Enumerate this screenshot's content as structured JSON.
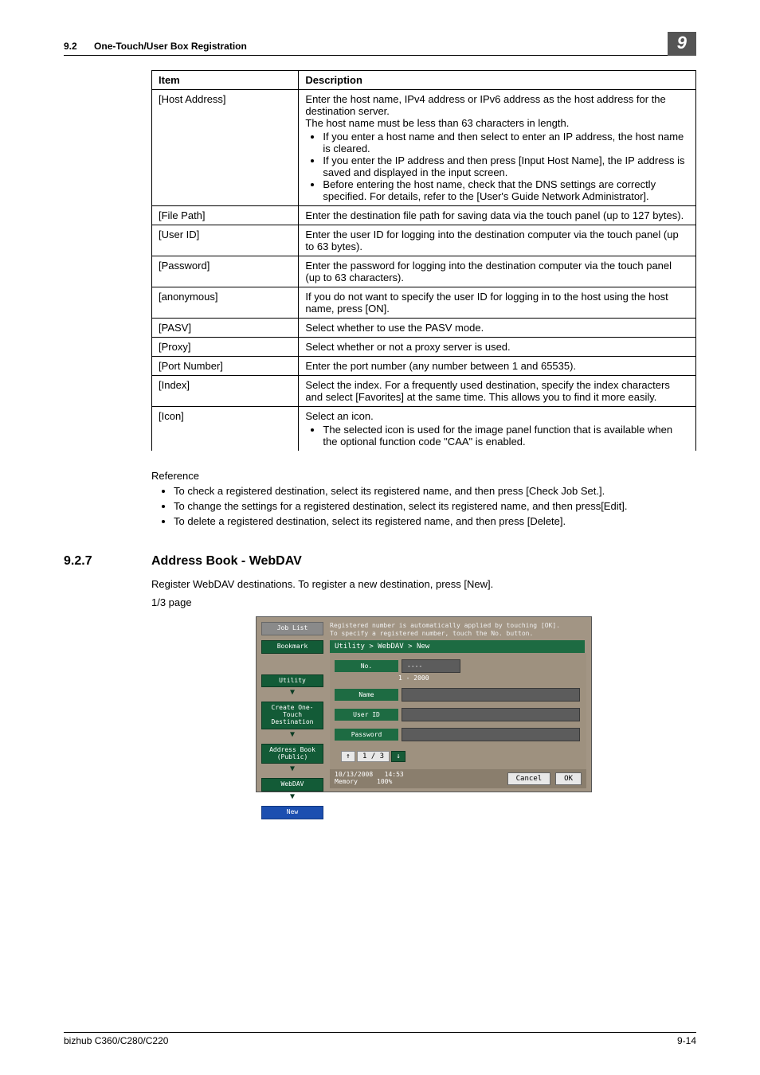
{
  "header": {
    "section_number": "9.2",
    "section_title": "One-Touch/User Box Registration",
    "chapter_badge": "9"
  },
  "table": {
    "columns": [
      "Item",
      "Description"
    ],
    "rows": [
      {
        "item": "[Host Address]",
        "desc_paras": [
          "Enter the host name, IPv4 address or IPv6 address as the host address for the destination server.",
          "The host name must be less than 63 characters in length."
        ],
        "bullets": [
          "If you enter a host name and then select to enter an IP address, the host name is cleared.",
          "If you enter the IP address and then press [Input Host Name], the IP address is saved and displayed in the input screen.",
          "Before entering the host name, check that the DNS settings are correctly specified. For details, refer to the [User's Guide Network Administrator]."
        ]
      },
      {
        "item": "[File Path]",
        "desc_paras": [
          "Enter the destination file path for saving data via the touch panel (up to 127 bytes)."
        ],
        "bullets": []
      },
      {
        "item": "[User ID]",
        "desc_paras": [
          "Enter the user ID for logging into the destination computer via the touch panel (up to 63 bytes)."
        ],
        "bullets": []
      },
      {
        "item": "[Password]",
        "desc_paras": [
          "Enter the password for logging into the destination computer via the touch panel (up to 63 characters)."
        ],
        "bullets": []
      },
      {
        "item": "[anonymous]",
        "desc_paras": [
          "If you do not want to specify the user ID for logging in to the host using the host name, press [ON]."
        ],
        "bullets": []
      },
      {
        "item": "[PASV]",
        "desc_paras": [
          "Select whether to use the PASV mode."
        ],
        "bullets": []
      },
      {
        "item": "[Proxy]",
        "desc_paras": [
          "Select whether or not a proxy server is used."
        ],
        "bullets": []
      },
      {
        "item": "[Port Number]",
        "desc_paras": [
          "Enter the port number (any number between 1 and 65535)."
        ],
        "bullets": []
      },
      {
        "item": "[Index]",
        "desc_paras": [
          "Select the index. For a frequently used destination, specify the index characters and select [Favorites] at the same time. This allows you to find it more easily."
        ],
        "bullets": []
      },
      {
        "item": "[Icon]",
        "desc_paras": [
          "Select an icon."
        ],
        "bullets": [
          "The selected icon is used for the image panel function that is available when the optional function code \"CAA\" is enabled."
        ]
      }
    ]
  },
  "reference": {
    "label": "Reference",
    "items": [
      "To check a registered destination, select its registered name, and then press [Check Job Set.].",
      "To change the settings for a registered destination, select its registered name, and then press[Edit].",
      "To delete a registered destination, select its registered name, and then press [Delete]."
    ]
  },
  "subsection": {
    "number": "9.2.7",
    "title": "Address Book - WebDAV",
    "intro": "Register WebDAV destinations. To register a new destination, press [New].",
    "page_label": "1/3 page"
  },
  "screen": {
    "side": {
      "job_list": "Job List",
      "bookmark": "Bookmark",
      "utility": "Utility",
      "create": "Create One-Touch Destination",
      "address_book": "Address Book (Public)",
      "webdav": "WebDAV",
      "new": "New"
    },
    "top_msg_1": "Registered number is automatically applied by touching [OK].",
    "top_msg_2": "To specify a registered number, touch the No. button.",
    "breadcrumb": "Utility > WebDAV > New",
    "fields": {
      "no_label": "No.",
      "no_value": "----",
      "no_range": "1 - 2000",
      "name_label": "Name",
      "name_value": "",
      "userid_label": "User ID",
      "userid_value": "",
      "password_label": "Password",
      "password_value": ""
    },
    "pager": {
      "up": "↑",
      "text": "1 / 3",
      "down": "↓"
    },
    "footer": {
      "date": "10/13/2008",
      "time": "14:53",
      "memory_label": "Memory",
      "memory_value": "100%",
      "cancel": "Cancel",
      "ok": "OK"
    }
  },
  "footer": {
    "left": "bizhub C360/C280/C220",
    "right": "9-14"
  }
}
